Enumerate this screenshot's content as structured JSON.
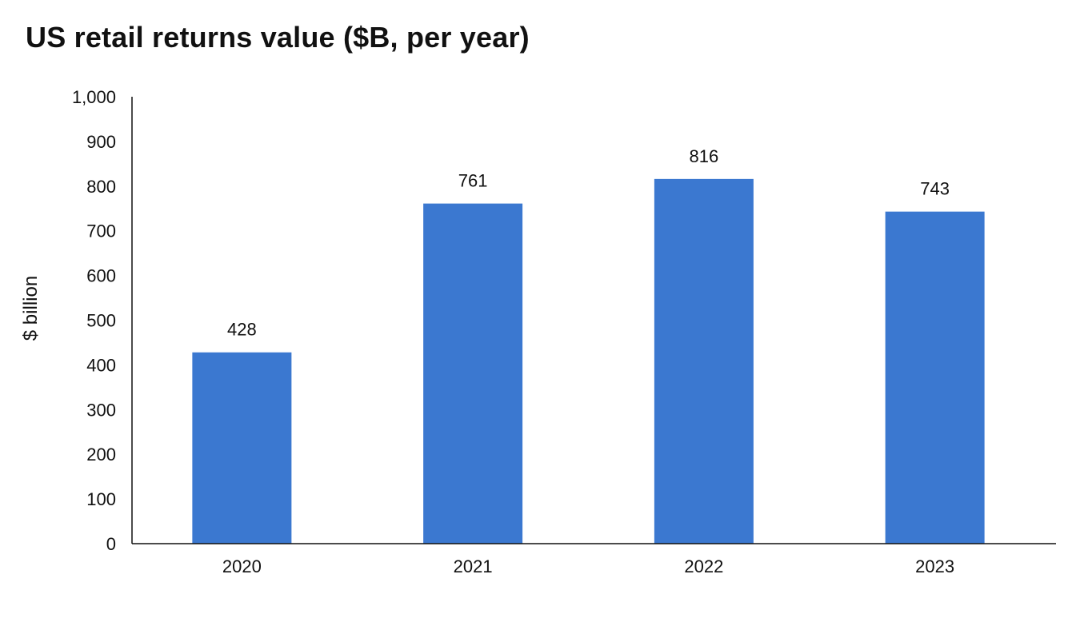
{
  "chart_data": {
    "type": "bar",
    "title": "US retail returns value ($B, per year)",
    "xlabel": "",
    "ylabel": "$ billion",
    "categories": [
      "2020",
      "2021",
      "2022",
      "2023"
    ],
    "values": [
      428,
      761,
      816,
      743
    ],
    "data_labels": [
      "428",
      "761",
      "816",
      "743"
    ],
    "ylim": [
      0,
      1000
    ],
    "yticks": [
      0,
      100,
      200,
      300,
      400,
      500,
      600,
      700,
      800,
      900,
      1000
    ],
    "ytick_labels": [
      "0",
      "100",
      "200",
      "300",
      "400",
      "500",
      "600",
      "700",
      "800",
      "900",
      "1,000"
    ],
    "grid": false,
    "legend": "none",
    "bar_color": "#3b78d0"
  }
}
